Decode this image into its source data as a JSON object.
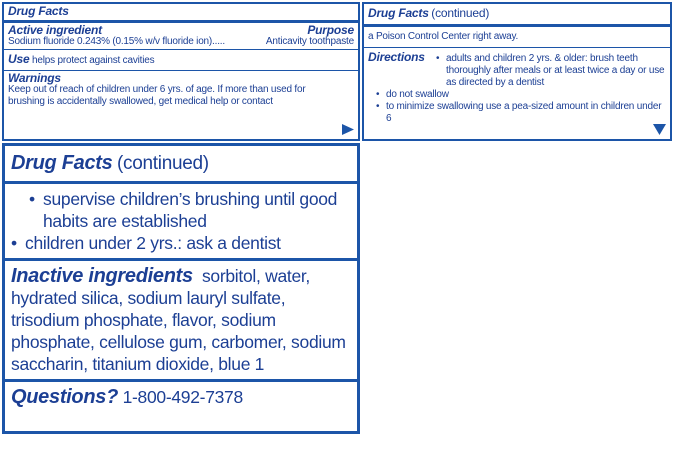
{
  "panel1": {
    "title": "Drug Facts",
    "active_heading": "Active ingredient",
    "purpose_heading": "Purpose",
    "active_text": "Sodium fluoride 0.243% (0.15% w/v fluoride ion).....",
    "purpose_text": "Anticavity toothpaste",
    "use_heading": "Use",
    "use_text": "helps protect against cavities",
    "warnings_heading": "Warnings",
    "warnings_text": "Keep out of reach of children under 6 yrs. of age. If more than used for brushing is accidentally swallowed, get medical help or contact"
  },
  "panel2": {
    "title": "Drug Facts",
    "title_suffix": "(continued)",
    "warnings_text": "a Poison Control Center right away.",
    "directions_heading": "Directions",
    "directions": [
      "adults and children 2 yrs. & older: brush teeth thoroughly after meals or at least twice a day or use as directed by a dentist",
      "do not swallow",
      "to minimize swallowing use a pea-sized amount in children under 6"
    ]
  },
  "panel3": {
    "title": "Drug Facts",
    "title_suffix": "(continued)",
    "directions": [
      "supervise children’s brushing until good habits are established",
      "children under 2 yrs.: ask a dentist"
    ],
    "inactive_heading": "Inactive ingredients",
    "inactive_text": "sorbitol, water, hydrated silica, sodium lauryl sulfate, trisodium phosphate, flavor, sodium phosphate, cellulose gum, carbomer, sodium saccharin, titanium dioxide, blue 1",
    "questions_heading": "Questions?",
    "questions_text": "1-800-492-7378"
  }
}
